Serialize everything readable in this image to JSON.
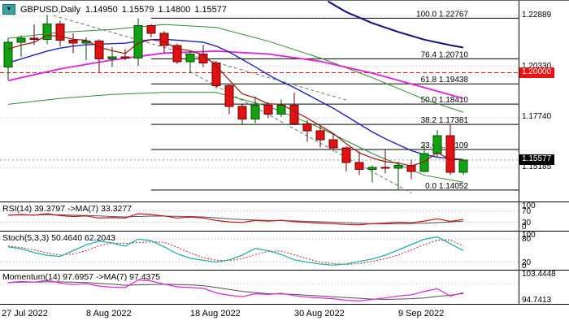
{
  "header": {
    "symbol": "GBPUSD,Daily",
    "open": "1.14950",
    "high": "1.15579",
    "low": "1.14800",
    "close": "1.15577"
  },
  "chart_data": {
    "type": "candlestick",
    "symbol": "GBPUSD",
    "timeframe": "Daily",
    "candle_format": "[open, high, low, close]",
    "price_axis": {
      "min": 1.1347,
      "max": 1.2365,
      "grid_labels": [
        {
          "text": "1.22889",
          "price": 1.22889
        },
        {
          "text": "1.20330",
          "price": 1.2033
        },
        {
          "text": "1.17740",
          "price": 1.1774
        },
        {
          "text": "1.15185",
          "price": 1.15185
        }
      ],
      "badges": [
        {
          "text": "1.20000",
          "price": 1.2,
          "bg": "#ee1111"
        },
        {
          "text": "1.15577",
          "price": 1.15577,
          "bg": "#000000"
        }
      ]
    },
    "style": {
      "up": {
        "fill": "#11a211",
        "border": "#024d02"
      },
      "down": {
        "fill": "#e11212",
        "border": "#6d0202"
      },
      "grid": "#c6c6c6",
      "fib_line": "#000000"
    },
    "candles": [
      [
        1.203,
        1.2175,
        1.1965,
        1.2155
      ],
      [
        1.2155,
        1.219,
        1.208,
        1.2175
      ],
      [
        1.2175,
        1.2245,
        1.214,
        1.217
      ],
      [
        1.217,
        1.2293,
        1.2145,
        1.2248
      ],
      [
        1.2248,
        1.2265,
        1.2135,
        1.2165
      ],
      [
        1.2165,
        1.22,
        1.21,
        1.215
      ],
      [
        1.215,
        1.218,
        1.2065,
        1.216
      ],
      [
        1.216,
        1.217,
        1.2003,
        1.207
      ],
      [
        1.207,
        1.213,
        1.203,
        1.208
      ],
      [
        1.208,
        1.212,
        1.2065,
        1.2075
      ],
      [
        1.2075,
        1.2276,
        1.2035,
        1.224
      ],
      [
        1.224,
        1.2248,
        1.218,
        1.22
      ],
      [
        1.22,
        1.221,
        1.21,
        1.2138
      ],
      [
        1.2138,
        1.2148,
        1.2045,
        1.2055
      ],
      [
        1.2055,
        1.211,
        1.2,
        1.2095
      ],
      [
        1.2095,
        1.2142,
        1.203,
        1.205
      ],
      [
        1.205,
        1.206,
        1.192,
        1.1935
      ],
      [
        1.1935,
        1.194,
        1.179,
        1.183
      ],
      [
        1.183,
        1.184,
        1.174,
        1.1765
      ],
      [
        1.1765,
        1.188,
        1.1745,
        1.1835
      ],
      [
        1.1835,
        1.185,
        1.177,
        1.179
      ],
      [
        1.179,
        1.1865,
        1.1775,
        1.1835
      ],
      [
        1.1835,
        1.19,
        1.1735,
        1.174
      ],
      [
        1.174,
        1.176,
        1.165,
        1.1706
      ],
      [
        1.1706,
        1.1735,
        1.1622,
        1.166
      ],
      [
        1.166,
        1.169,
        1.16,
        1.162
      ],
      [
        1.162,
        1.1625,
        1.1499,
        1.1545
      ],
      [
        1.1545,
        1.16,
        1.148,
        1.151
      ],
      [
        1.151,
        1.153,
        1.1444,
        1.152
      ],
      [
        1.152,
        1.1608,
        1.149,
        1.1515
      ],
      [
        1.1515,
        1.1548,
        1.1404,
        1.153
      ],
      [
        1.153,
        1.156,
        1.146,
        1.15
      ],
      [
        1.15,
        1.1647,
        1.1495,
        1.159
      ],
      [
        1.159,
        1.171,
        1.157,
        1.168
      ],
      [
        1.168,
        1.1738,
        1.148,
        1.1495
      ],
      [
        1.1495,
        1.15579,
        1.148,
        1.15577
      ]
    ],
    "fibonacci": {
      "start_index": 11,
      "levels": [
        {
          "pct": "100.0",
          "price": 1.22767,
          "price_text": "1.22767"
        },
        {
          "pct": "76.4",
          "price": 1.2071,
          "price_text": "1.20710"
        },
        {
          "pct": "61.8",
          "price": 1.19438,
          "price_text": "1.19438"
        },
        {
          "pct": "50.0",
          "price": 1.1841,
          "price_text": "1.18410"
        },
        {
          "pct": "38.2",
          "price": 1.17381,
          "price_text": "1.17381"
        },
        {
          "pct": "23.6",
          "price": 1.16109,
          "price_text": "1.16109"
        },
        {
          "pct": "0.0",
          "price": 1.14052,
          "price_text": "1.14052"
        }
      ]
    },
    "hline": {
      "price": 1.2,
      "color": "#ee1111"
    },
    "current_price": {
      "price": 1.15577
    },
    "trendlines": [
      {
        "p": [
          [
            3.5,
            1.229
          ],
          [
            26,
            1.1862
          ]
        ],
        "color": "#707070",
        "dash": "4,3"
      },
      {
        "p": [
          [
            14,
            1.2005
          ],
          [
            31,
            1.139
          ]
        ],
        "color": "#707070",
        "dash": "4,3"
      }
    ],
    "overlays": [
      {
        "name": "bollinger-upper",
        "color": "#2e8b2e",
        "width": 1,
        "points": [
          [
            0,
            1.2175
          ],
          [
            4,
            1.2205
          ],
          [
            8,
            1.222
          ],
          [
            12,
            1.2245
          ],
          [
            16,
            1.223
          ],
          [
            20,
            1.216
          ],
          [
            24,
            1.2075
          ],
          [
            28,
            1.1975
          ],
          [
            32,
            1.1865
          ],
          [
            35,
            1.18
          ]
        ]
      },
      {
        "name": "bollinger-lower",
        "color": "#2e8b2e",
        "width": 1,
        "points": [
          [
            0,
            1.184
          ],
          [
            4,
            1.187
          ],
          [
            8,
            1.189
          ],
          [
            12,
            1.19
          ],
          [
            16,
            1.19
          ],
          [
            20,
            1.183
          ],
          [
            24,
            1.172
          ],
          [
            28,
            1.159
          ],
          [
            32,
            1.148
          ],
          [
            35,
            1.1445
          ]
        ]
      },
      {
        "name": "ma-slow-magenta",
        "color": "#e020e0",
        "width": 1.8,
        "points": [
          [
            0,
            1.196
          ],
          [
            4,
            1.202
          ],
          [
            8,
            1.2065
          ],
          [
            12,
            1.21
          ],
          [
            16,
            1.211
          ],
          [
            20,
            1.2095
          ],
          [
            24,
            1.2058
          ],
          [
            28,
            1.1998
          ],
          [
            32,
            1.1925
          ],
          [
            35,
            1.187
          ]
        ]
      },
      {
        "name": "ma-long-navy",
        "color": "#101080",
        "width": 2,
        "points": [
          [
            24.6,
            1.2362
          ],
          [
            26,
            1.2308
          ],
          [
            28,
            1.2252
          ],
          [
            30,
            1.2207
          ],
          [
            32,
            1.2168
          ],
          [
            34,
            1.214
          ],
          [
            35,
            1.2128
          ]
        ]
      },
      {
        "name": "ma-medium-blue",
        "color": "#2020c0",
        "width": 1.4,
        "values": [
          1.205,
          1.207,
          1.209,
          1.211,
          1.2125,
          1.2135,
          1.2142,
          1.2145,
          1.2148,
          1.215,
          1.216,
          1.2168,
          1.217,
          1.2165,
          1.216,
          1.2155,
          1.2135,
          1.2105,
          1.2068,
          1.203,
          1.199,
          1.1955,
          1.1925,
          1.189,
          1.1855,
          1.182,
          1.178,
          1.174,
          1.17,
          1.1665,
          1.1635,
          1.1605,
          1.1585,
          1.1572,
          1.1565,
          1.156
        ]
      },
      {
        "name": "ma-fast-red",
        "color": "#9b1010",
        "width": 1.2,
        "above": true,
        "values": [
          1.212,
          1.214,
          1.2155,
          1.219,
          1.2185,
          1.217,
          1.2165,
          1.213,
          1.2112,
          1.2098,
          1.215,
          1.2168,
          1.2158,
          1.2122,
          1.2112,
          1.209,
          1.2035,
          1.1963,
          1.1893,
          1.1872,
          1.1843,
          1.184,
          1.1805,
          1.177,
          1.1731,
          1.1692,
          1.164,
          1.1594,
          1.1568,
          1.1549,
          1.1542,
          1.1527,
          1.1549,
          1.1595,
          1.156,
          1.1559
        ]
      }
    ],
    "x_axis": {
      "ticks": [
        {
          "label": "27 Jul 2022",
          "index": 0
        },
        {
          "label": "8 Aug 2022",
          "index": 8
        },
        {
          "label": "18 Aug 2022",
          "index": 16
        },
        {
          "label": "30 Aug 2022",
          "index": 24
        },
        {
          "label": "9 Sep 2022",
          "index": 32
        }
      ]
    },
    "panels": [
      {
        "name": "rsi",
        "label": "RSI(14) 39.3797  ->MA(7) 33.3277",
        "main_value": "39.3797",
        "signal_value": "33.3277",
        "min": 0,
        "max": 100,
        "levels": [
          70,
          30
        ],
        "axis_marks": [
          {
            "text": "100",
            "v": 100
          },
          {
            "text": "70",
            "v": 70
          },
          {
            "text": "30",
            "v": 30
          },
          {
            "text": "0",
            "v": 0
          }
        ],
        "series": [
          {
            "name": "rsi-ma",
            "color": "#555555",
            "width": 1,
            "values": [
              55,
              55.5,
              55.5,
              56.5,
              56,
              54.5,
              53.5,
              52,
              50,
              48.5,
              50,
              51.5,
              51.5,
              50.5,
              50,
              48.5,
              45.5,
              42,
              39,
              37.5,
              36,
              35.5,
              34.5,
              33,
              31.5,
              30,
              28,
              26,
              24.5,
              24,
              24.5,
              25.5,
              26.5,
              28.5,
              31,
              33.33
            ]
          },
          {
            "name": "rsi-main",
            "color": "#cc1111",
            "width": 1.2,
            "values": [
              55,
              57,
              55,
              60,
              53,
              50,
              52,
              45,
              46,
              45,
              60,
              57,
              52,
              45,
              48,
              45,
              36,
              31,
              29,
              36,
              34,
              37,
              32,
              29,
              27,
              25,
              22,
              21,
              25,
              27,
              30,
              28,
              34,
              42,
              33,
              39.38
            ]
          }
        ]
      },
      {
        "name": "stoch",
        "label": "Stoch(5,3,3) 50.4640 62.2043",
        "main_value": "50.4640",
        "signal_value": "62.2043",
        "min": 0,
        "max": 100,
        "levels": [
          80,
          20
        ],
        "axis_marks": [
          {
            "text": "100",
            "v": 100
          },
          {
            "text": "80",
            "v": 80
          },
          {
            "text": "20",
            "v": 20
          },
          {
            "text": "0",
            "v": 0
          }
        ],
        "series": [
          {
            "name": "stoch-signal",
            "color": "#cc2222",
            "width": 1,
            "dash": "2,2",
            "values": [
              62,
              58,
              52,
              44,
              39,
              41,
              50,
              63,
              70,
              69,
              71,
              73,
              72,
              59,
              44,
              32,
              25,
              24,
              29,
              40,
              48,
              49,
              39,
              29,
              20,
              16,
              14,
              16,
              22,
              29,
              39,
              52,
              66,
              77,
              78,
              62.2
            ]
          },
          {
            "name": "stoch-main",
            "color": "#20b2aa",
            "width": 1.3,
            "values": [
              60,
              55,
              45,
              38,
              35,
              50,
              65,
              75,
              70,
              62,
              80,
              76,
              60,
              42,
              30,
              25,
              20,
              26,
              38,
              56,
              50,
              40,
              26,
              20,
              15,
              12,
              15,
              22,
              28,
              38,
              52,
              66,
              80,
              86,
              68,
              50.46
            ]
          }
        ]
      },
      {
        "name": "momentum",
        "label": "Momentum(14) 97.6957  ->MA(7) 97.4375",
        "main_value": "97.6957",
        "signal_value": "97.4375",
        "min": 94.7413,
        "max": 103.4448,
        "levels": [
          100
        ],
        "axis_marks": [
          {
            "text": "103.4448",
            "v": 103.4448
          },
          {
            "text": "94.7413",
            "v": 94.7413
          }
        ],
        "series": [
          {
            "name": "momentum-ma",
            "color": "#505050",
            "width": 1,
            "values": [
              100.3,
              100.4,
              100.4,
              100.5,
              100.5,
              100.4,
              100.3,
              100.1,
              99.9,
              99.6,
              99.7,
              99.8,
              99.9,
              99.8,
              99.7,
              99.5,
              99.0,
              98.5,
              98.0,
              97.7,
              97.4,
              97.3,
              97.2,
              97.0,
              96.8,
              96.6,
              96.4,
              96.2,
              96.0,
              95.9,
              96.0,
              96.1,
              96.3,
              96.7,
              97.0,
              97.44
            ]
          },
          {
            "name": "momentum-main",
            "color": "#e020e0",
            "width": 1.2,
            "values": [
              100.3,
              100.6,
              100.4,
              100.9,
              100.2,
              99.8,
              100.0,
              99.4,
              99.1,
              99.0,
              101.0,
              100.7,
              99.9,
              99.2,
              99.0,
              98.8,
              97.6,
              97.0,
              96.6,
              97.4,
              97.2,
              97.5,
              96.9,
              96.5,
              96.3,
              96.1,
              95.7,
              95.5,
              95.9,
              96.3,
              96.8,
              97.1,
              98.0,
              98.7,
              96.8,
              97.7
            ]
          }
        ]
      }
    ]
  }
}
